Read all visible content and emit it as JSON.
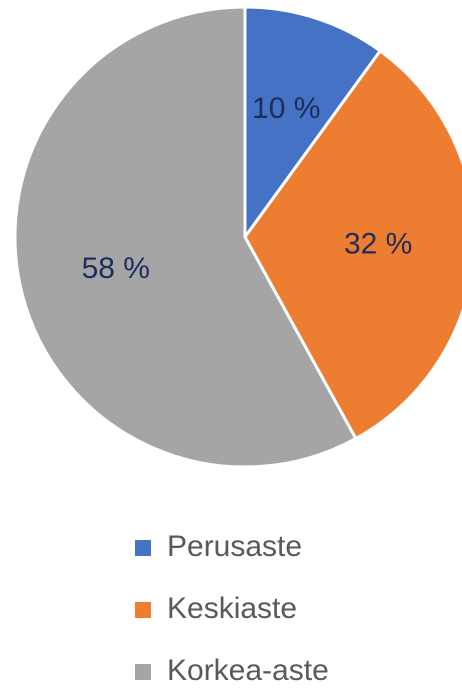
{
  "chart_data": {
    "type": "pie",
    "categories": [
      "Perusaste",
      "Keskiaste",
      "Korkea-aste"
    ],
    "values": [
      10,
      32,
      58
    ],
    "value_labels": [
      "10 %",
      "32 %",
      "58 %"
    ],
    "colors": [
      "#4472c4",
      "#ed7d31",
      "#a5a5a5"
    ],
    "legend": "bottom"
  }
}
